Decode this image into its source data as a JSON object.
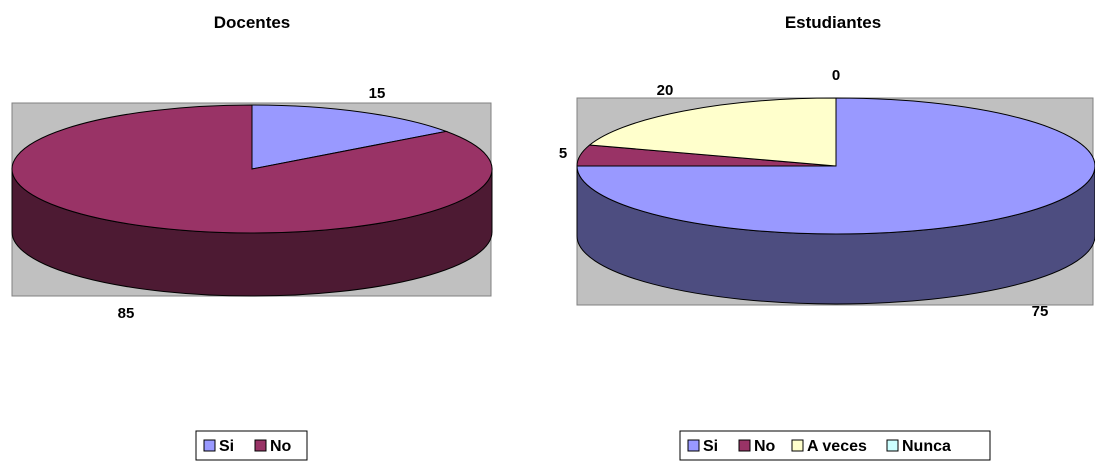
{
  "chart_data": [
    {
      "type": "pie",
      "title": "Docentes",
      "categories": [
        "Si",
        "No"
      ],
      "values": [
        15,
        85
      ],
      "colors": [
        "#9999ff",
        "#993366"
      ],
      "data_labels": [
        "15",
        "85"
      ],
      "legend": {
        "placement": "bottom",
        "entries": [
          "Si",
          "No"
        ]
      },
      "style": "3d"
    },
    {
      "type": "pie",
      "title": "Estudiantes",
      "categories": [
        "Si",
        "No",
        "A veces",
        "Nunca"
      ],
      "values": [
        75,
        5,
        20,
        0
      ],
      "colors": [
        "#9999ff",
        "#993366",
        "#ffffcc",
        "#ccffff"
      ],
      "data_labels": [
        "75",
        "5",
        "20",
        "0"
      ],
      "legend": {
        "placement": "bottom",
        "entries": [
          "Si",
          "No",
          "A veces",
          "Nunca"
        ]
      },
      "style": "3d"
    }
  ]
}
